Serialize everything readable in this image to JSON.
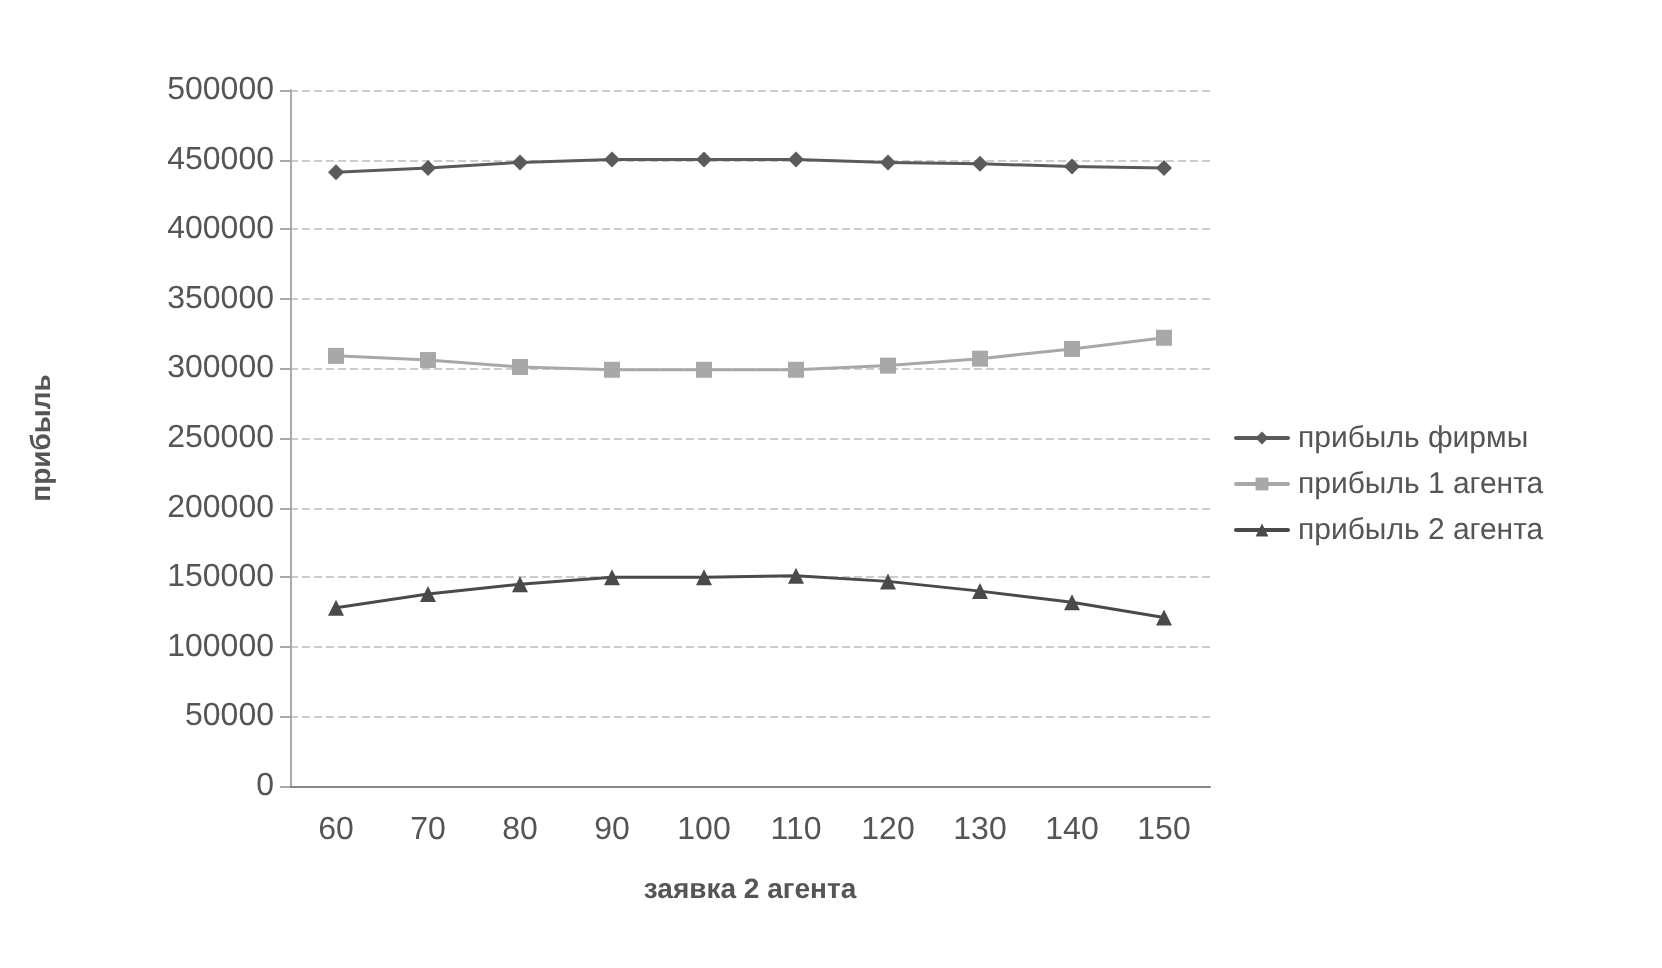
{
  "chart_data": {
    "type": "line",
    "xlabel": "заявка 2 агента",
    "ylabel": "прибыль",
    "categories": [
      "60",
      "70",
      "80",
      "90",
      "100",
      "110",
      "120",
      "130",
      "140",
      "150"
    ],
    "series": [
      {
        "name": "прибыль фирмы",
        "color": "#5a5a5a",
        "marker": "diamond",
        "values": [
          441000,
          444000,
          448000,
          450000,
          450000,
          450000,
          448000,
          447000,
          445000,
          444000
        ]
      },
      {
        "name": "прибыль 1 агента",
        "color": "#a8a8a8",
        "marker": "square",
        "values": [
          309000,
          306000,
          301000,
          299000,
          299000,
          299000,
          302000,
          307000,
          314000,
          322000
        ]
      },
      {
        "name": "прибыль 2 агента",
        "color": "#4a4a4a",
        "marker": "triangle",
        "values": [
          128000,
          138000,
          145000,
          150000,
          150000,
          151000,
          147000,
          140000,
          132000,
          121000
        ]
      }
    ],
    "ylim": [
      0,
      500000
    ],
    "yticks": [
      0,
      50000,
      100000,
      150000,
      200000,
      250000,
      300000,
      350000,
      400000,
      450000,
      500000
    ],
    "grid": "y",
    "legend": "right",
    "line_style": "solid"
  }
}
